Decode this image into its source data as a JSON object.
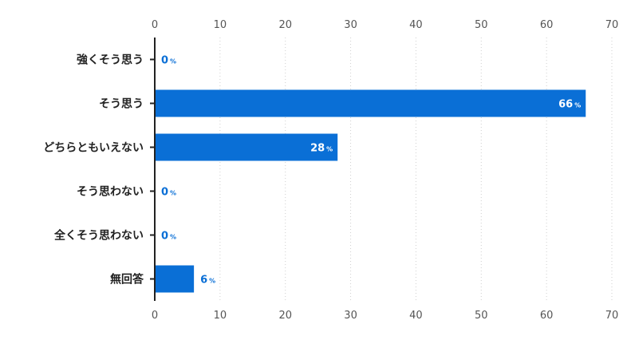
{
  "chart_data": {
    "type": "bar",
    "orientation": "horizontal",
    "categories": [
      "強くそう思う",
      "そう思う",
      "どちらともいえない",
      "そう思わない",
      "全くそう思わない",
      "無回答"
    ],
    "values": [
      0,
      66,
      28,
      0,
      0,
      6
    ],
    "value_unit": "%",
    "xlim": [
      0,
      70
    ],
    "xticks": [
      0,
      10,
      20,
      30,
      40,
      50,
      60,
      70
    ],
    "x_axis_labels_position": "top-and-bottom",
    "grid": "vertical-dotted",
    "bar_color": "#0a6fd6",
    "label_color_outside": "#0a6fd6",
    "label_color_inside": "#ffffff"
  }
}
